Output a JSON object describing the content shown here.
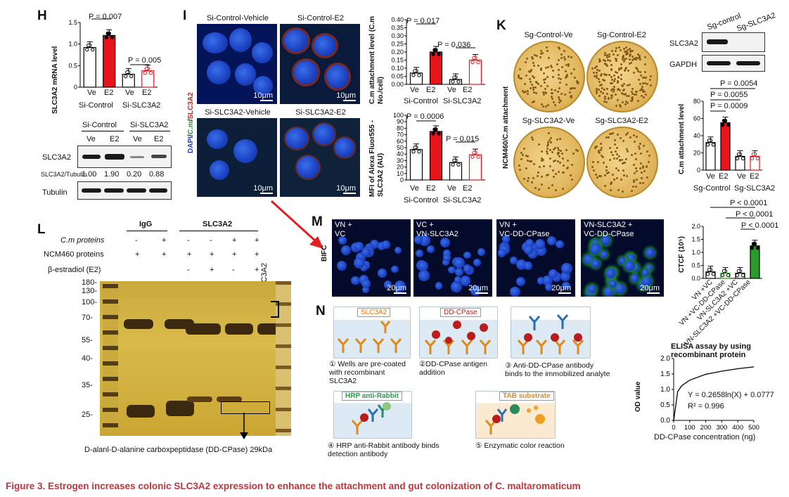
{
  "panels": {
    "H": {
      "letter": "H",
      "ylabel": "SLC3A2 mRNA level",
      "yticks": [
        "0",
        "0.5",
        "1.0",
        "1.5"
      ],
      "p1": "P = 0.007",
      "p2": "P = 0.005",
      "xticks": [
        "Ve",
        "E2",
        "Ve",
        "E2"
      ],
      "groups": [
        "Si-Control",
        "Si-SLC3A2"
      ],
      "blot_groups": [
        "Si-Control",
        "Si-SLC3A2"
      ],
      "blot_lanes": [
        "Ve",
        "E2",
        "Ve",
        "E2"
      ],
      "blot_rows": [
        "SLC3A2",
        "Tubulin"
      ],
      "ratio_label": "SLC3A2/Tubulin",
      "ratios": [
        "1.00",
        "1.90",
        "0.20",
        "0.88"
      ]
    },
    "I": {
      "letter": "I",
      "titles": [
        "Si-Control-Vehicle",
        "Si-Control-E2",
        "Si-SLC3A2-Vehicle",
        "Si-SLC3A2-E2"
      ],
      "scale": "10μm",
      "stain_dapi": "DAPI",
      "stain_cm": "C.m",
      "stain_slc": "SLC3A2",
      "chart1": {
        "ylabel": "C.m attachment level (C.m No./cell)",
        "yticks": [
          "0.00",
          "0.05",
          "0.10",
          "0.15",
          "0.20",
          "0.25",
          "0.30",
          "0.35",
          "0.40"
        ],
        "p1": "P = 0.017",
        "p2": "P = 0.036",
        "xticks": [
          "Ve",
          "E2",
          "Ve",
          "E2"
        ],
        "groups": [
          "Si-Control",
          "Si-SLC3A2"
        ]
      },
      "chart2": {
        "ylabel": "MFI of Alexa Fluor555 -SLC3A2 (AU)",
        "yticks": [
          "0",
          "10",
          "20",
          "30",
          "40",
          "50",
          "60",
          "70",
          "80",
          "90",
          "100"
        ],
        "p1": "P = 0.0006",
        "p2": "P = 0.015",
        "xticks": [
          "Ve",
          "E2",
          "Ve",
          "E2"
        ],
        "groups": [
          "Si-Control",
          "Si-SLC3A2"
        ]
      }
    },
    "K": {
      "letter": "K",
      "plate_titles": [
        "Sg-Control-Ve",
        "Sg-Control-E2",
        "Sg-SLC3A2-Ve",
        "Sg-SLC3A2-E2"
      ],
      "side_label": "NCM460/C.m attachment",
      "blot_lanes": [
        "Sg-control",
        "Sg-SLC3A2"
      ],
      "blot_rows": [
        "SLC3A2",
        "GAPDH"
      ],
      "chart": {
        "ylabel": "C.m attachment level",
        "yticks": [
          "0",
          "20",
          "40",
          "60",
          "80"
        ],
        "p_values": [
          "P = 0.0054",
          "P = 0.0055",
          "P = 0.0009"
        ],
        "xticks": [
          "Ve",
          "E2",
          "Ve",
          "E2"
        ],
        "groups": [
          "Sg-Control",
          "Sg-SLC3A2"
        ]
      }
    },
    "L": {
      "letter": "L",
      "header_igg": "IgG",
      "header_slc": "SLC3A2",
      "row_labels": [
        "C.m proteins",
        "NCM460 proteins",
        "β-estradiol (E2)"
      ],
      "row_signs": [
        [
          "-",
          "+",
          "-",
          "-",
          "+",
          "+"
        ],
        [
          "+",
          "+",
          "+",
          "+",
          "+",
          "+"
        ],
        [
          "",
          "",
          "-",
          "+",
          "-",
          "+"
        ]
      ],
      "lane_label": "SLC3A2",
      "ladder": [
        "180-",
        "130-",
        "100-",
        "70-",
        "55-",
        "40-",
        "35-",
        "25-"
      ],
      "caption": "D-alanl-D-alanine carboxpeptidase (DD-CPase) 29kDa"
    },
    "M": {
      "letter": "M",
      "side": "BIFC",
      "titles": [
        [
          "VN +",
          "VC"
        ],
        [
          "VC +",
          "VN-SLC3A2"
        ],
        [
          "VN +",
          "VC-DD-CPase"
        ],
        [
          "VN-SLC3A2 +",
          "VC-DD-CPase"
        ]
      ],
      "scale": "20μm",
      "chart": {
        "ylabel": "CTCF (10⁵)",
        "yticks": [
          "0.0",
          "0.5",
          "1.0",
          "1.5",
          "2.0"
        ],
        "p_values": [
          "P < 0.0001",
          "P < 0.0001",
          "P < 0.0001"
        ],
        "xticks": [
          "VN +VC",
          "VN +VC-DD-CPase",
          "VN-SLC3A2 +VC",
          "VN-SLC3A2 +VC-DD-CPase"
        ]
      }
    },
    "N": {
      "letter": "N",
      "tags": [
        "SLC3A2",
        "DD-CPase",
        "HRP anti-Rabbit",
        "TAB substrate"
      ],
      "steps": [
        "① Wells are pre-coated with recombinant SLC3A2",
        "②DD-CPase antigen addition",
        "③ Anti-DD-CPase antibody binds to the immobilized analyte",
        "④ HRP anti-Rabbit antibody binds detection antibody",
        "⑤ Enzymatic color reaction"
      ],
      "chart": {
        "title": "ELISA assay by using recombinant protein",
        "ylabel": "OD value",
        "xlabel": "DD-CPase concentration (ng)",
        "yticks": [
          "0.0",
          "0.5",
          "1.0",
          "1.5",
          "2.0"
        ],
        "xticks": [
          "0",
          "100",
          "200",
          "300",
          "400",
          "500"
        ],
        "equation": "Y = 0.2658ln(X) + 0.0777",
        "r2": "R² = 0.996"
      }
    }
  },
  "caption": "Figure 3.  Estrogen increases colonic SLC3A2 expression to enhance the attachment and gut colonization of C. maltaromaticum",
  "chart_data": [
    {
      "type": "bar",
      "title": "",
      "ylabel": "SLC3A2 mRNA level",
      "categories": [
        "Si-Control Ve",
        "Si-Control E2",
        "Si-SLC3A2 Ve",
        "Si-SLC3A2 E2"
      ],
      "values": [
        0.92,
        1.2,
        0.3,
        0.38
      ],
      "ylim": [
        0,
        1.5
      ],
      "colors": [
        "#ffffff",
        "#e8141b",
        "#ffffff",
        "#ffffff"
      ],
      "edge_colors": [
        "#000000",
        "#000000",
        "#000000",
        "#e8141b"
      ]
    },
    {
      "type": "bar",
      "title": "",
      "ylabel": "C.m attachment level (C.m No./cell)",
      "categories": [
        "Si-Control Ve",
        "Si-Control E2",
        "Si-SLC3A2 Ve",
        "Si-SLC3A2 E2"
      ],
      "values": [
        0.07,
        0.2,
        0.03,
        0.15
      ],
      "ylim": [
        0,
        0.4
      ],
      "colors": [
        "#ffffff",
        "#e8141b",
        "#ffffff",
        "#ffffff"
      ],
      "edge_colors": [
        "#000000",
        "#000000",
        "#000000",
        "#e8141b"
      ]
    },
    {
      "type": "bar",
      "title": "",
      "ylabel": "MFI of Alexa Fluor555 -SLC3A2 (AU)",
      "categories": [
        "Si-Control Ve",
        "Si-Control E2",
        "Si-SLC3A2 Ve",
        "Si-SLC3A2 E2"
      ],
      "values": [
        47,
        75,
        27,
        39
      ],
      "ylim": [
        0,
        100
      ],
      "colors": [
        "#ffffff",
        "#e8141b",
        "#ffffff",
        "#ffffff"
      ],
      "edge_colors": [
        "#000000",
        "#000000",
        "#000000",
        "#e8141b"
      ]
    },
    {
      "type": "bar",
      "title": "",
      "ylabel": "C.m attachment level",
      "categories": [
        "Sg-Control Ve",
        "Sg-Control E2",
        "Sg-SLC3A2 Ve",
        "Sg-SLC3A2 E2"
      ],
      "values": [
        32,
        55,
        16,
        16
      ],
      "ylim": [
        0,
        80
      ],
      "colors": [
        "#ffffff",
        "#e8141b",
        "#ffffff",
        "#ffffff"
      ],
      "edge_colors": [
        "#000000",
        "#000000",
        "#000000",
        "#e8141b"
      ]
    },
    {
      "type": "bar",
      "title": "",
      "ylabel": "CTCF (10⁵)",
      "categories": [
        "VN +VC",
        "VN +VC-DD-CPase",
        "VN-SLC3A2 +VC",
        "VN-SLC3A2 +VC-DD-CPase"
      ],
      "values": [
        0.25,
        0.2,
        0.2,
        1.25
      ],
      "ylim": [
        0,
        2.0
      ],
      "colors": [
        "#ffffff",
        "#ffffff",
        "#ffffff",
        "#2c9b2c"
      ],
      "edge_colors": [
        "#000000",
        "#2c9b2c",
        "#000000",
        "#000000"
      ]
    },
    {
      "type": "line",
      "title": "ELISA assay by using recombinant protein",
      "xlabel": "DD-CPase concentration (ng)",
      "ylabel": "OD value",
      "x": [
        0,
        25,
        50,
        100,
        200,
        300,
        400,
        500
      ],
      "y": [
        0.0,
        0.93,
        1.12,
        1.3,
        1.49,
        1.59,
        1.67,
        1.73
      ],
      "xlim": [
        0,
        500
      ],
      "ylim": [
        0,
        2.0
      ]
    }
  ]
}
